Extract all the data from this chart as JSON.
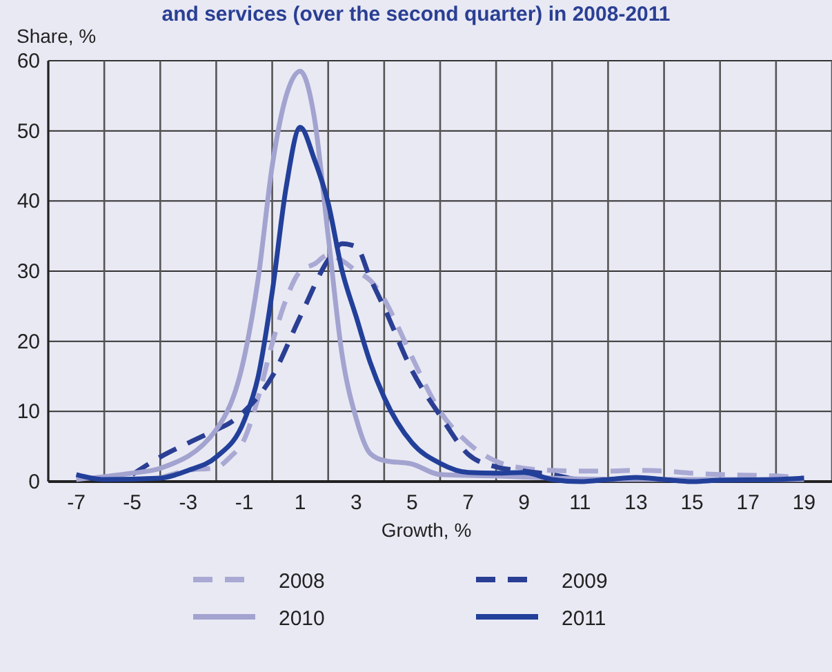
{
  "chart_data": {
    "type": "line",
    "title": "and services (over the second quarter) in 2008-2011",
    "xlabel": "Growth, %",
    "ylabel": "Share, %",
    "xlim": [
      -8,
      20
    ],
    "xticks": [
      {
        "value": -8,
        "label": null
      },
      {
        "value": -7,
        "label": "-7"
      },
      {
        "value": -6,
        "label": null
      },
      {
        "value": -5,
        "label": "-5"
      },
      {
        "value": -4,
        "label": null
      },
      {
        "value": -3,
        "label": "-3"
      },
      {
        "value": -2,
        "label": null
      },
      {
        "value": -1,
        "label": "-1"
      },
      {
        "value": 0,
        "label": null
      },
      {
        "value": 1,
        "label": "1"
      },
      {
        "value": 2,
        "label": null
      },
      {
        "value": 3,
        "label": "3"
      },
      {
        "value": 4,
        "label": null
      },
      {
        "value": 5,
        "label": "5"
      },
      {
        "value": 6,
        "label": null
      },
      {
        "value": 7,
        "label": "7"
      },
      {
        "value": 8,
        "label": null
      },
      {
        "value": 9,
        "label": "9"
      },
      {
        "value": 10,
        "label": null
      },
      {
        "value": 11,
        "label": "11"
      },
      {
        "value": 12,
        "label": null
      },
      {
        "value": 13,
        "label": "13"
      },
      {
        "value": 14,
        "label": null
      },
      {
        "value": 15,
        "label": "15"
      },
      {
        "value": 16,
        "label": null
      },
      {
        "value": 17,
        "label": "17"
      },
      {
        "value": 18,
        "label": null
      },
      {
        "value": 19,
        "label": "19"
      },
      {
        "value": 20,
        "label": null
      }
    ],
    "ylim": [
      0,
      60
    ],
    "yticks": [
      0,
      10,
      20,
      30,
      40,
      50,
      60
    ],
    "grid": true,
    "legend": "bottom",
    "marker": "none",
    "series": [
      {
        "name": "2008",
        "color": "#a9a9d4",
        "line_style": "dashed",
        "x": [
          -4,
          -3,
          -2,
          -1.5,
          -1,
          -0.5,
          0,
          0.5,
          1,
          1.5,
          2,
          2.5,
          3,
          3.5,
          4,
          4.5,
          5,
          6,
          7,
          8,
          9,
          10,
          11,
          12,
          13,
          14,
          15,
          16,
          18,
          19
        ],
        "values": [
          0.5,
          1.6,
          2,
          3.5,
          6,
          12,
          19.7,
          26,
          30,
          31,
          32.3,
          31.5,
          30,
          28.7,
          26,
          22,
          17.7,
          10,
          5.5,
          2.9,
          1.9,
          1.6,
          1.5,
          1.5,
          1.6,
          1.5,
          1.2,
          1,
          0.8,
          0.5
        ]
      },
      {
        "name": "2009",
        "color": "#2a3f93",
        "line_style": "dashed",
        "x": [
          -5,
          -4,
          -3,
          -2,
          -1.5,
          -1,
          0,
          1,
          2,
          2.5,
          3,
          3.5,
          4,
          5,
          6,
          7,
          8,
          9,
          10,
          11,
          12
        ],
        "values": [
          1,
          3.5,
          5.5,
          7.4,
          8.4,
          10,
          15,
          23.5,
          31.6,
          33.9,
          33.5,
          29,
          24.8,
          15.8,
          9.4,
          3.9,
          2.1,
          1.5,
          1,
          0.3,
          0.3
        ]
      },
      {
        "name": "2010",
        "color": "#a3a3d0",
        "line_style": "solid",
        "x": [
          -7,
          -6,
          -5,
          -4,
          -2,
          -1,
          -0.5,
          0,
          0.5,
          1,
          1.5,
          2,
          2.5,
          3,
          3.5,
          4,
          5,
          6,
          8,
          10,
          12,
          14,
          16,
          19
        ],
        "values": [
          0.3,
          0.7,
          1.2,
          1.9,
          7.4,
          17.7,
          29,
          45,
          55,
          58.5,
          52,
          35,
          18,
          9,
          4,
          3,
          2.5,
          1,
          0.8,
          0.5,
          0.3,
          0.3,
          0.3,
          0.3
        ]
      },
      {
        "name": "2011",
        "color": "#22409a",
        "line_style": "solid",
        "x": [
          -7,
          -6,
          -4,
          -3,
          -2,
          -1,
          -0.5,
          0,
          0.5,
          1,
          1.5,
          2,
          2.5,
          3,
          3.5,
          4,
          5,
          6,
          7,
          8,
          9,
          10,
          11,
          12,
          13,
          14,
          15,
          16,
          18,
          19
        ],
        "values": [
          1,
          0.3,
          0.5,
          1.6,
          3.5,
          8.7,
          15,
          27,
          42,
          50.5,
          46,
          39.7,
          30,
          23.5,
          17,
          12,
          5.5,
          2.6,
          1.3,
          1.2,
          1.3,
          0.3,
          0,
          0.3,
          0.6,
          0.3,
          0,
          0.2,
          0.3,
          0.5
        ]
      }
    ]
  }
}
